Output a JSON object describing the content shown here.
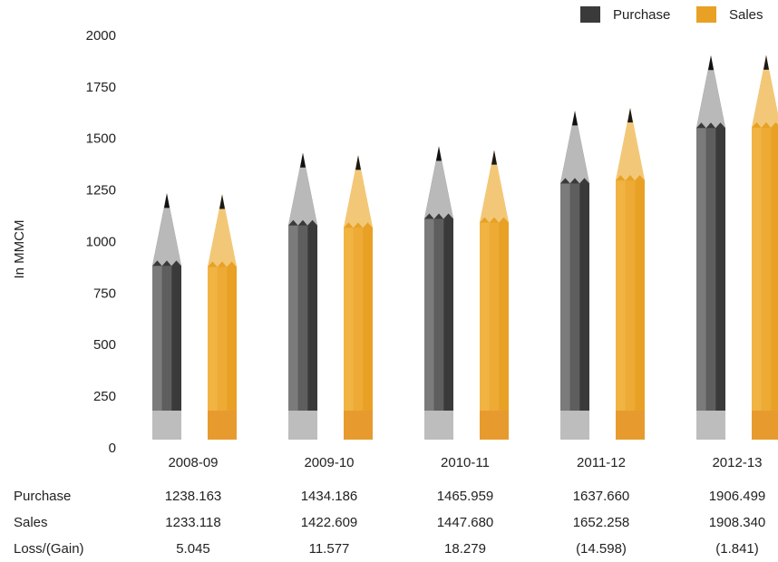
{
  "chart_data": {
    "type": "pencil-bar",
    "y_label": "In MMCM",
    "categories": [
      "2008-09",
      "2009-10",
      "2010-11",
      "2011-12",
      "2012-13"
    ],
    "series": [
      {
        "name": "Purchase",
        "color": "#3a3a3a",
        "values": [
          1238.163,
          1434.186,
          1465.959,
          1637.66,
          1906.499
        ],
        "value_labels": [
          "1238.163",
          "1434.186",
          "1465.959",
          "1637.660",
          "1906.499"
        ]
      },
      {
        "name": "Sales",
        "color": "#e8a125",
        "values": [
          1233.118,
          1422.609,
          1447.68,
          1652.258,
          1908.34
        ],
        "value_labels": [
          "1233.118",
          "1422.609",
          "1447.680",
          "1652.258",
          "1908.340"
        ]
      }
    ],
    "table": {
      "row_label": "Loss/(Gain)",
      "values": [
        "5.045",
        "11.577",
        "18.279",
        "(14.598)",
        "(1.841)"
      ]
    },
    "ylim": [
      0,
      2000
    ],
    "yticks": [
      0,
      250,
      500,
      750,
      1000,
      1250,
      1500,
      1750,
      2000
    ],
    "grid": false,
    "legend": "top-right"
  }
}
